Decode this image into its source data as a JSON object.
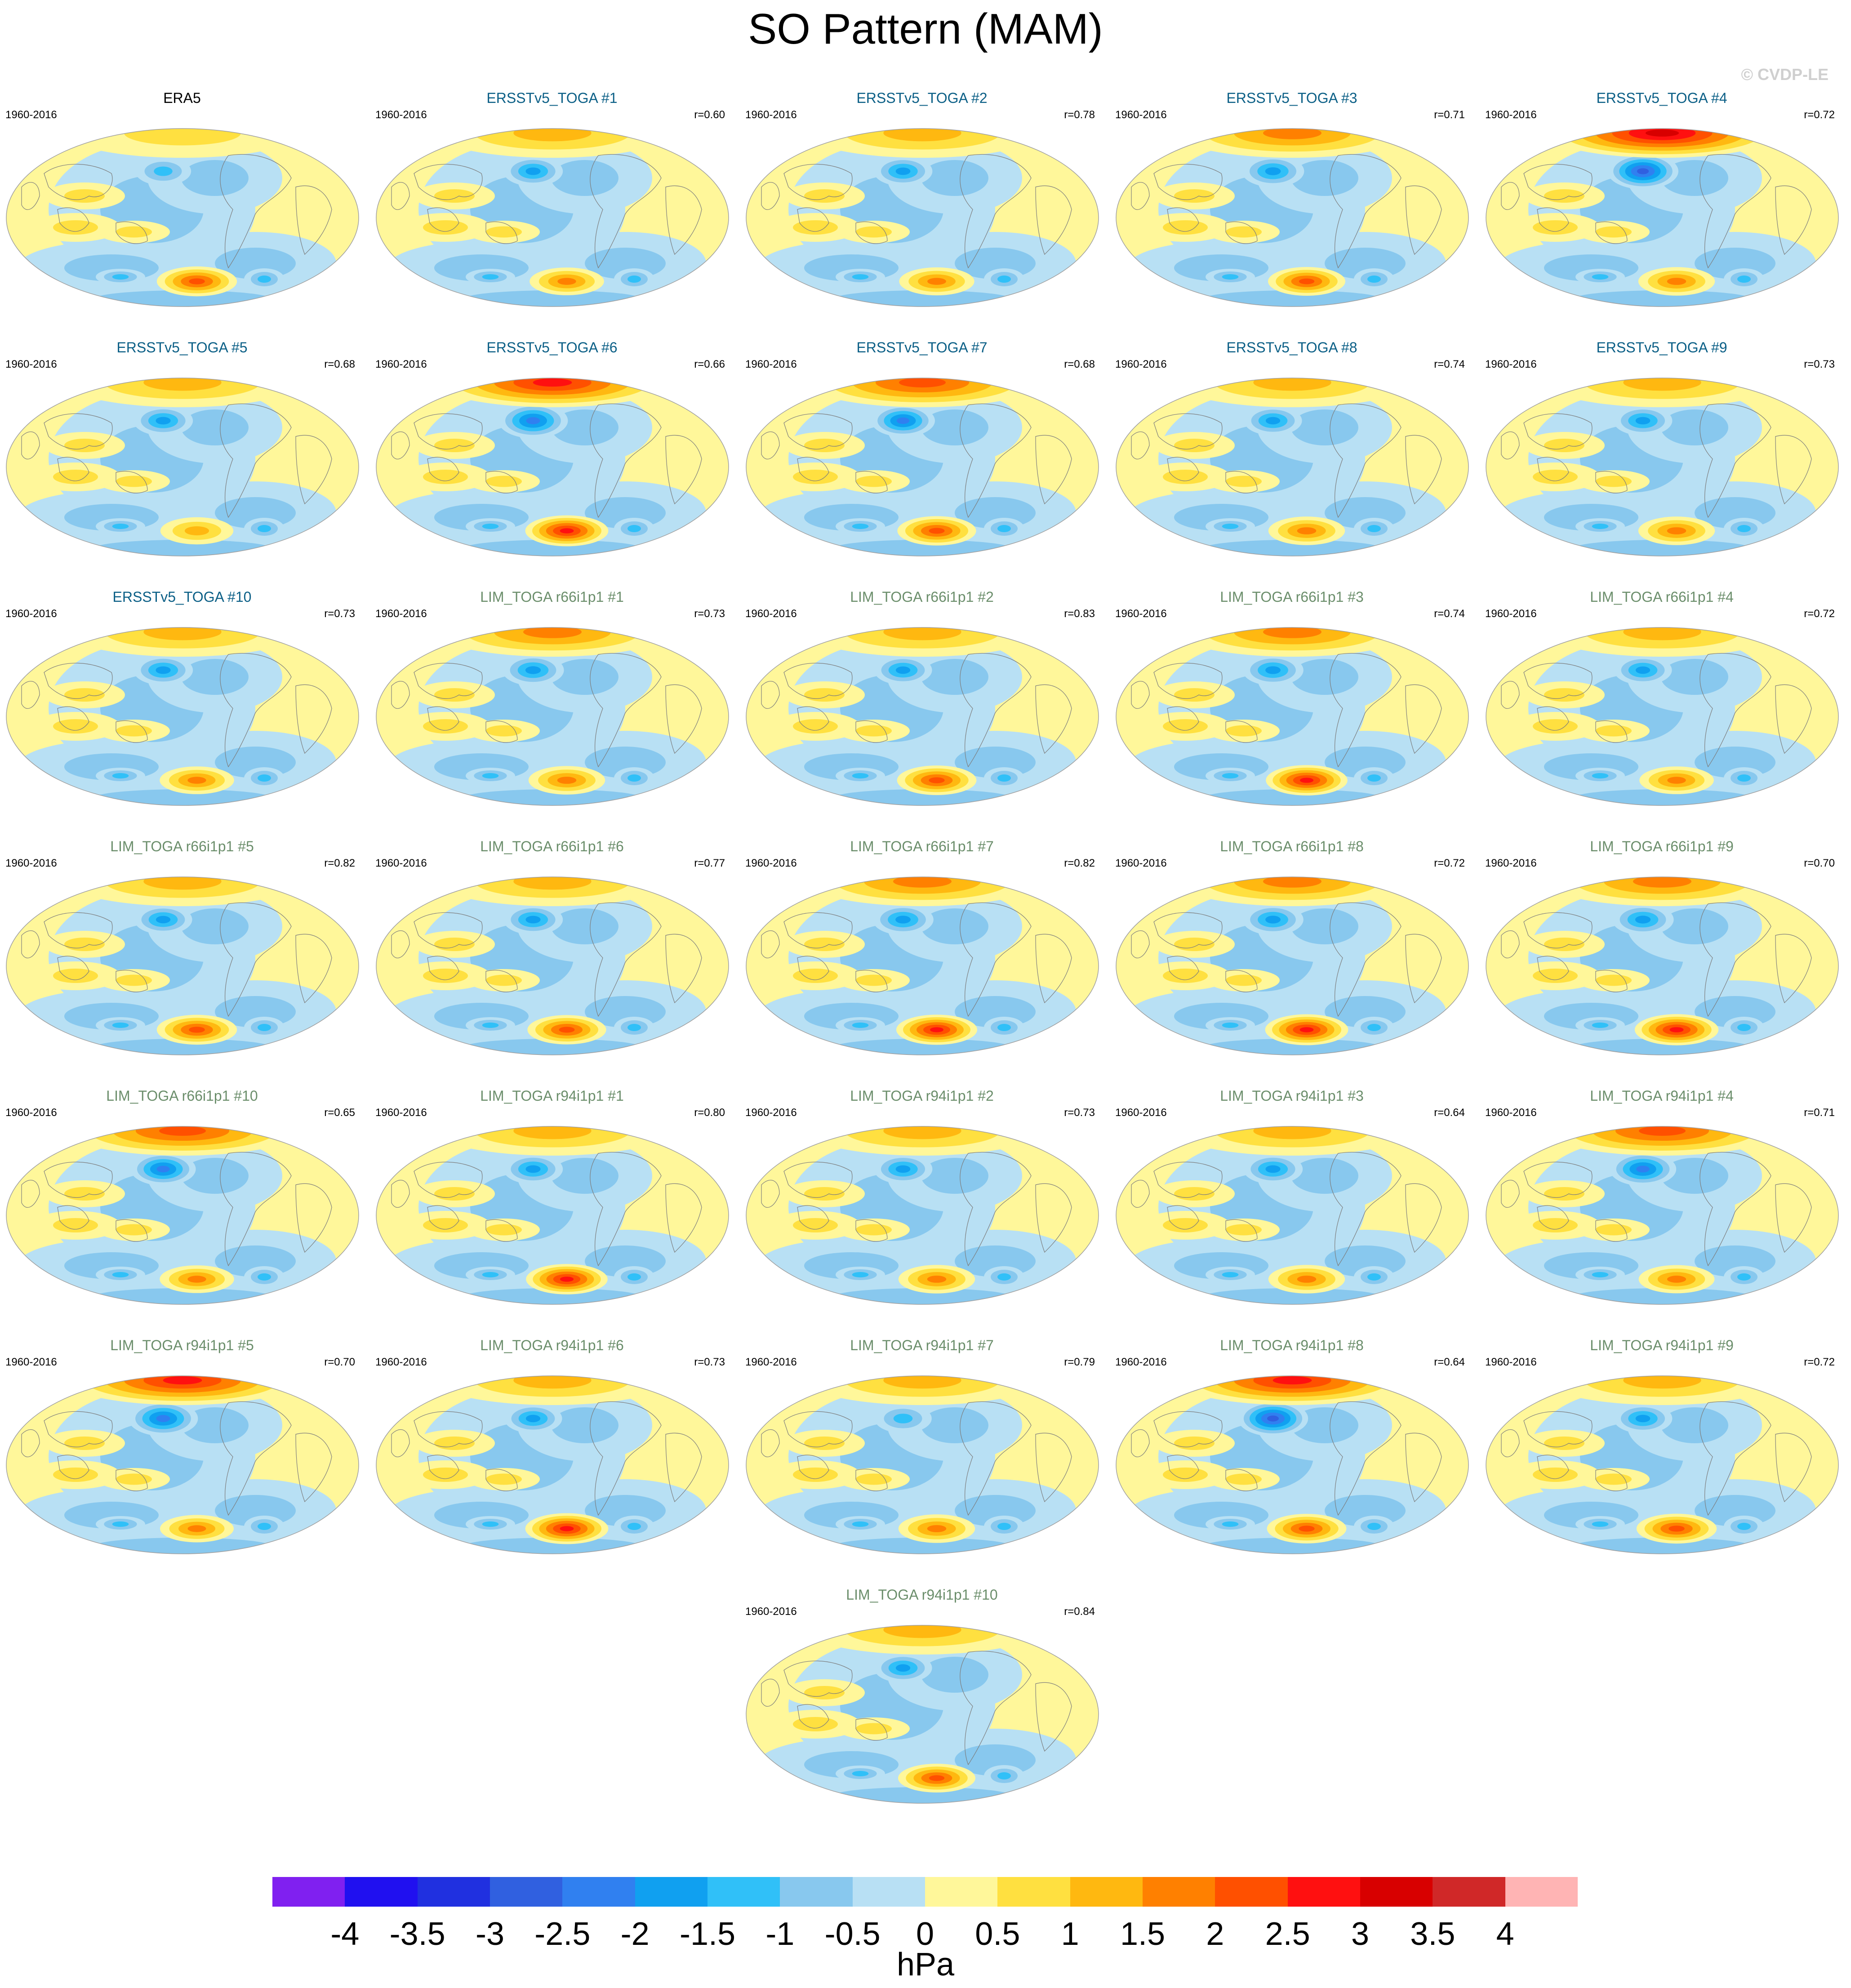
{
  "title": "SO Pattern (MAM)",
  "credit": "© CVDP-LE",
  "chart_data": {
    "type": "heatmap",
    "title": "SO Pattern (MAM)",
    "units": "hPa",
    "colorbar": {
      "ticks": [
        "-4",
        "-3.5",
        "-3",
        "-2.5",
        "-2",
        "-1.5",
        "-1",
        "-0.5",
        "0",
        "0.5",
        "1",
        "1.5",
        "2",
        "2.5",
        "3",
        "3.5",
        "4"
      ],
      "colors": [
        "#8020f0",
        "#2010f0",
        "#2030e0",
        "#3060e0",
        "#3080f0",
        "#10a0f0",
        "#30c0f8",
        "#88c8ee",
        "#b8e0f4",
        "#fff79a",
        "#ffe040",
        "#ffb810",
        "#ff8000",
        "#ff5000",
        "#ff1010",
        "#d80000",
        "#d02828",
        "#ffb4b4"
      ]
    },
    "panels": [
      {
        "title": "ERA5",
        "period": "1960-2016",
        "r": "",
        "group": "obs",
        "n": 0.9,
        "s": 2.4
      },
      {
        "title": "ERSSTv5_TOGA #1",
        "period": "1960-2016",
        "r": "r=0.60",
        "group": "ersst",
        "n": 1.4,
        "s": 1.6
      },
      {
        "title": "ERSSTv5_TOGA #2",
        "period": "1960-2016",
        "r": "r=0.78",
        "group": "ersst",
        "n": 1.3,
        "s": 1.7
      },
      {
        "title": "ERSSTv5_TOGA #3",
        "period": "1960-2016",
        "r": "r=0.71",
        "group": "ersst",
        "n": 1.8,
        "s": 2.0
      },
      {
        "title": "ERSSTv5_TOGA #4",
        "period": "1960-2016",
        "r": "r=0.72",
        "group": "ersst",
        "n": 3.0,
        "s": 1.9
      },
      {
        "title": "ERSSTv5_TOGA #5",
        "period": "1960-2016",
        "r": "r=0.68",
        "group": "ersst",
        "n": 1.4,
        "s": 1.4
      },
      {
        "title": "ERSSTv5_TOGA #6",
        "period": "1960-2016",
        "r": "r=0.66",
        "group": "ersst",
        "n": 2.8,
        "s": 2.8
      },
      {
        "title": "ERSSTv5_TOGA #7",
        "period": "1960-2016",
        "r": "r=0.68",
        "group": "ersst",
        "n": 2.0,
        "s": 2.2
      },
      {
        "title": "ERSSTv5_TOGA #8",
        "period": "1960-2016",
        "r": "r=0.74",
        "group": "ersst",
        "n": 1.2,
        "s": 1.9
      },
      {
        "title": "ERSSTv5_TOGA #9",
        "period": "1960-2016",
        "r": "r=0.73",
        "group": "ersst",
        "n": 1.3,
        "s": 1.9
      },
      {
        "title": "ERSSTv5_TOGA #10",
        "period": "1960-2016",
        "r": "r=0.73",
        "group": "ersst",
        "n": 1.4,
        "s": 1.6
      },
      {
        "title": "LIM_TOGA r66i1p1 #1",
        "period": "1960-2016",
        "r": "r=0.73",
        "group": "lim",
        "n": 1.7,
        "s": 1.9
      },
      {
        "title": "LIM_TOGA r66i1p1 #2",
        "period": "1960-2016",
        "r": "r=0.83",
        "group": "lim",
        "n": 1.2,
        "s": 2.3
      },
      {
        "title": "LIM_TOGA r66i1p1 #3",
        "period": "1960-2016",
        "r": "r=0.74",
        "group": "lim",
        "n": 1.6,
        "s": 2.6
      },
      {
        "title": "LIM_TOGA r66i1p1 #4",
        "period": "1960-2016",
        "r": "r=0.72",
        "group": "lim",
        "n": 1.2,
        "s": 1.6
      },
      {
        "title": "LIM_TOGA r66i1p1 #5",
        "period": "1960-2016",
        "r": "r=0.82",
        "group": "lim",
        "n": 1.2,
        "s": 2.4
      },
      {
        "title": "LIM_TOGA r66i1p1 #6",
        "period": "1960-2016",
        "r": "r=0.77",
        "group": "lim",
        "n": 1.4,
        "s": 2.2
      },
      {
        "title": "LIM_TOGA r66i1p1 #7",
        "period": "1960-2016",
        "r": "r=0.82",
        "group": "lim",
        "n": 1.6,
        "s": 2.5
      },
      {
        "title": "LIM_TOGA r66i1p1 #8",
        "period": "1960-2016",
        "r": "r=0.72",
        "group": "lim",
        "n": 1.6,
        "s": 2.8
      },
      {
        "title": "LIM_TOGA r66i1p1 #9",
        "period": "1960-2016",
        "r": "r=0.70",
        "group": "lim",
        "n": 1.7,
        "s": 2.9
      },
      {
        "title": "LIM_TOGA r66i1p1 #10",
        "period": "1960-2016",
        "r": "r=0.65",
        "group": "lim",
        "n": 2.2,
        "s": 1.6
      },
      {
        "title": "LIM_TOGA r94i1p1 #1",
        "period": "1960-2016",
        "r": "r=0.80",
        "group": "lim",
        "n": 1.4,
        "s": 2.6
      },
      {
        "title": "LIM_TOGA r94i1p1 #2",
        "period": "1960-2016",
        "r": "r=0.73",
        "group": "lim",
        "n": 1.3,
        "s": 1.9
      },
      {
        "title": "LIM_TOGA r94i1p1 #3",
        "period": "1960-2016",
        "r": "r=0.64",
        "group": "lim",
        "n": 1.4,
        "s": 1.9
      },
      {
        "title": "LIM_TOGA r94i1p1 #4",
        "period": "1960-2016",
        "r": "r=0.71",
        "group": "lim",
        "n": 2.4,
        "s": 1.8
      },
      {
        "title": "LIM_TOGA r94i1p1 #5",
        "period": "1960-2016",
        "r": "r=0.70",
        "group": "lim",
        "n": 2.8,
        "s": 1.5
      },
      {
        "title": "LIM_TOGA r94i1p1 #6",
        "period": "1960-2016",
        "r": "r=0.73",
        "group": "lim",
        "n": 1.2,
        "s": 2.8
      },
      {
        "title": "LIM_TOGA r94i1p1 #7",
        "period": "1960-2016",
        "r": "r=0.79",
        "group": "lim",
        "n": 1.1,
        "s": 1.9
      },
      {
        "title": "LIM_TOGA r94i1p1 #8",
        "period": "1960-2016",
        "r": "r=0.64",
        "group": "lim",
        "n": 2.9,
        "s": 2.3
      },
      {
        "title": "LIM_TOGA r94i1p1 #9",
        "period": "1960-2016",
        "r": "r=0.72",
        "group": "lim",
        "n": 1.3,
        "s": 2.4
      },
      {
        "title": "LIM_TOGA r94i1p1 #10",
        "period": "1960-2016",
        "r": "r=0.84",
        "group": "lim",
        "n": 1.2,
        "s": 2.0
      }
    ]
  },
  "title_colors": {
    "obs": "#000000",
    "ersst": "#0b5f86",
    "lim": "#6b8e6b"
  }
}
